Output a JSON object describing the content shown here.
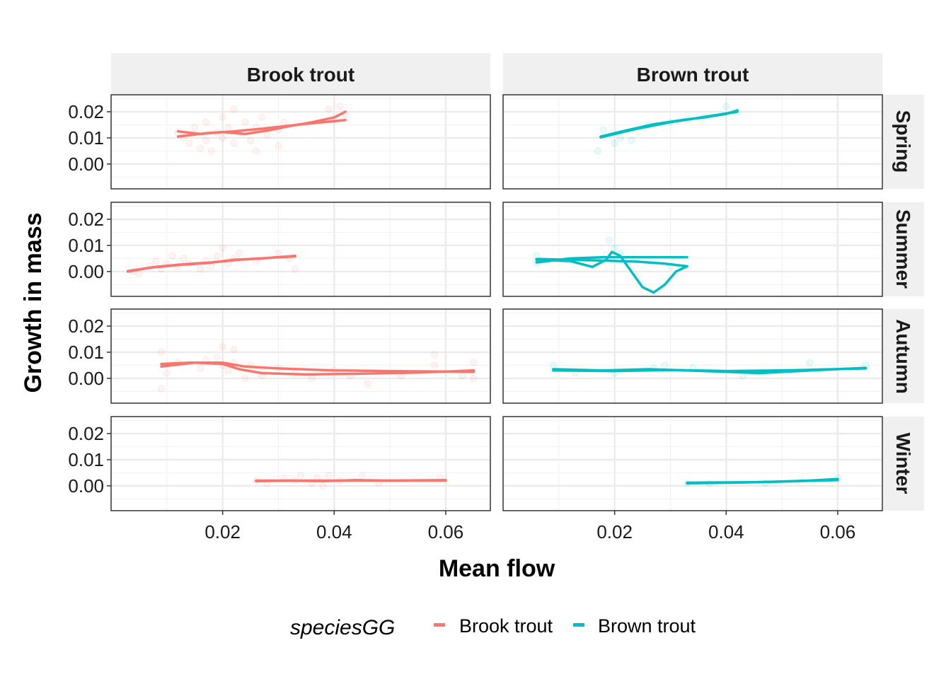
{
  "chart_data": {
    "type": "scatter",
    "xlabel": "Mean flow",
    "ylabel": "Growth in mass",
    "xlim": [
      0.0,
      0.068
    ],
    "ylim": [
      -0.0095,
      0.0265
    ],
    "x_ticks": [
      0.02,
      0.04,
      0.06
    ],
    "x_tick_labels": [
      "0.02",
      "0.04",
      "0.06"
    ],
    "y_ticks": [
      0.0,
      0.01,
      0.02
    ],
    "y_tick_labels": [
      "0.00",
      "0.01",
      "0.02"
    ],
    "grid": true,
    "columns": [
      "Brook trout",
      "Brown trout"
    ],
    "rows": [
      "Spring",
      "Summer",
      "Autumn",
      "Winter"
    ],
    "legend": {
      "title": "speciesGG",
      "position": "bottom",
      "entries": [
        {
          "label": "Brook trout",
          "color": "#F8766D"
        },
        {
          "label": "Brown trout",
          "color": "#00BFC4"
        }
      ]
    },
    "panels": [
      {
        "column": "Brook trout",
        "row": "Spring",
        "color": "#F8766D",
        "points": [
          [
            0.012,
            0.012
          ],
          [
            0.013,
            0.01
          ],
          [
            0.014,
            0.008
          ],
          [
            0.015,
            0.014
          ],
          [
            0.016,
            0.006
          ],
          [
            0.017,
            0.009
          ],
          [
            0.017,
            0.016
          ],
          [
            0.018,
            0.005
          ],
          [
            0.019,
            0.012
          ],
          [
            0.02,
            0.01
          ],
          [
            0.02,
            0.018
          ],
          [
            0.021,
            0.014
          ],
          [
            0.022,
            0.008
          ],
          [
            0.022,
            0.021
          ],
          [
            0.023,
            0.012
          ],
          [
            0.024,
            0.016
          ],
          [
            0.025,
            0.009
          ],
          [
            0.026,
            0.005
          ],
          [
            0.026,
            0.014
          ],
          [
            0.027,
            0.018
          ],
          [
            0.028,
            0.011
          ],
          [
            0.03,
            0.013
          ],
          [
            0.03,
            0.007
          ],
          [
            0.031,
            0.016
          ],
          [
            0.039,
            0.021
          ],
          [
            0.04,
            0.017
          ],
          [
            0.041,
            0.022
          ],
          [
            0.042,
            0.019
          ]
        ],
        "lines": [
          [
            [
              0.012,
              0.0125
            ],
            [
              0.016,
              0.0115
            ],
            [
              0.02,
              0.0122
            ],
            [
              0.024,
              0.0115
            ],
            [
              0.028,
              0.0128
            ],
            [
              0.032,
              0.0145
            ],
            [
              0.036,
              0.016
            ],
            [
              0.04,
              0.0178
            ],
            [
              0.042,
              0.02
            ]
          ],
          [
            [
              0.012,
              0.0105
            ],
            [
              0.017,
              0.0118
            ],
            [
              0.022,
              0.0125
            ],
            [
              0.027,
              0.0135
            ],
            [
              0.032,
              0.0147
            ],
            [
              0.037,
              0.0158
            ],
            [
              0.042,
              0.0168
            ]
          ]
        ]
      },
      {
        "column": "Brown trout",
        "row": "Spring",
        "color": "#00BFC4",
        "points": [
          [
            0.017,
            0.005
          ],
          [
            0.018,
            0.013
          ],
          [
            0.02,
            0.008
          ],
          [
            0.021,
            0.01
          ],
          [
            0.023,
            0.009
          ],
          [
            0.026,
            0.015
          ],
          [
            0.03,
            0.016
          ],
          [
            0.033,
            0.017
          ],
          [
            0.036,
            0.018
          ],
          [
            0.04,
            0.022
          ],
          [
            0.042,
            0.02
          ]
        ],
        "lines": [
          [
            [
              0.0175,
              0.0105
            ],
            [
              0.022,
              0.0128
            ],
            [
              0.027,
              0.0152
            ],
            [
              0.032,
              0.0168
            ],
            [
              0.036,
              0.0178
            ],
            [
              0.04,
              0.0192
            ],
            [
              0.042,
              0.0205
            ]
          ],
          [
            [
              0.0175,
              0.0102
            ],
            [
              0.024,
              0.0135
            ],
            [
              0.03,
              0.016
            ],
            [
              0.036,
              0.018
            ],
            [
              0.042,
              0.02
            ]
          ]
        ]
      },
      {
        "column": "Brook trout",
        "row": "Summer",
        "color": "#F8766D",
        "points": [
          [
            0.004,
            0.0
          ],
          [
            0.005,
            -0.001
          ],
          [
            0.007,
            0.002
          ],
          [
            0.008,
            0.004
          ],
          [
            0.009,
            0.001
          ],
          [
            0.01,
            0.003
          ],
          [
            0.011,
            0.006
          ],
          [
            0.012,
            0.002
          ],
          [
            0.013,
            0.005
          ],
          [
            0.014,
            0.003
          ],
          [
            0.016,
            0.001
          ],
          [
            0.017,
            0.004
          ],
          [
            0.018,
            0.002
          ],
          [
            0.019,
            0.006
          ],
          [
            0.02,
            0.009
          ],
          [
            0.021,
            0.003
          ],
          [
            0.022,
            0.005
          ],
          [
            0.023,
            0.007
          ],
          [
            0.026,
            0.004
          ],
          [
            0.03,
            0.007
          ],
          [
            0.032,
            0.005
          ],
          [
            0.033,
            0.001
          ]
        ],
        "lines": [
          [
            [
              0.003,
              0.0
            ],
            [
              0.007,
              0.0015
            ],
            [
              0.012,
              0.0025
            ],
            [
              0.017,
              0.0032
            ],
            [
              0.022,
              0.0045
            ],
            [
              0.027,
              0.005
            ],
            [
              0.033,
              0.006
            ]
          ],
          [
            [
              0.003,
              0.0002
            ],
            [
              0.008,
              0.0018
            ],
            [
              0.013,
              0.0028
            ],
            [
              0.018,
              0.0035
            ],
            [
              0.023,
              0.0045
            ],
            [
              0.028,
              0.0052
            ],
            [
              0.033,
              0.0058
            ]
          ]
        ]
      },
      {
        "column": "Brown trout",
        "row": "Summer",
        "color": "#00BFC4",
        "points": [
          [
            0.006,
            0.006
          ],
          [
            0.006,
            0.003
          ],
          [
            0.019,
            0.012
          ],
          [
            0.02,
            0.009
          ],
          [
            0.021,
            0.007
          ],
          [
            0.03,
            0.002
          ]
        ],
        "lines": [
          [
            [
              0.006,
              0.0045
            ],
            [
              0.012,
              0.004
            ],
            [
              0.016,
              0.0018
            ],
            [
              0.0185,
              0.0045
            ],
            [
              0.0195,
              0.0075
            ],
            [
              0.021,
              0.006
            ],
            [
              0.023,
              0.0
            ],
            [
              0.025,
              -0.006
            ],
            [
              0.027,
              -0.008
            ],
            [
              0.029,
              -0.005
            ],
            [
              0.031,
              0.0
            ],
            [
              0.033,
              0.002
            ]
          ],
          [
            [
              0.006,
              0.0035
            ],
            [
              0.012,
              0.005
            ],
            [
              0.018,
              0.0055
            ],
            [
              0.024,
              0.0055
            ],
            [
              0.033,
              0.0055
            ]
          ],
          [
            [
              0.006,
              0.0048
            ],
            [
              0.012,
              0.0045
            ],
            [
              0.018,
              0.0042
            ],
            [
              0.024,
              0.0038
            ],
            [
              0.029,
              0.003
            ],
            [
              0.033,
              0.002
            ]
          ]
        ]
      },
      {
        "column": "Brook trout",
        "row": "Autumn",
        "color": "#F8766D",
        "points": [
          [
            0.009,
            0.01
          ],
          [
            0.009,
            -0.004
          ],
          [
            0.01,
            0.002
          ],
          [
            0.012,
            0.006
          ],
          [
            0.016,
            0.004
          ],
          [
            0.017,
            0.007
          ],
          [
            0.019,
            0.008
          ],
          [
            0.02,
            0.012
          ],
          [
            0.02,
            0.005
          ],
          [
            0.021,
            0.003
          ],
          [
            0.022,
            0.011
          ],
          [
            0.022,
            0.006
          ],
          [
            0.024,
            0.0
          ],
          [
            0.025,
            0.005
          ],
          [
            0.027,
            0.001
          ],
          [
            0.03,
            0.004
          ],
          [
            0.033,
            0.002
          ],
          [
            0.036,
            0.0
          ],
          [
            0.04,
            0.003
          ],
          [
            0.043,
            0.001
          ],
          [
            0.046,
            -0.002
          ],
          [
            0.052,
            0.001
          ],
          [
            0.058,
            0.009
          ],
          [
            0.058,
            0.005
          ],
          [
            0.063,
            0.001
          ],
          [
            0.065,
            0.006
          ],
          [
            0.065,
            0.0
          ]
        ],
        "lines": [
          [
            [
              0.009,
              0.0055
            ],
            [
              0.014,
              0.006
            ],
            [
              0.02,
              0.006
            ],
            [
              0.024,
              0.0045
            ],
            [
              0.03,
              0.0038
            ],
            [
              0.04,
              0.003
            ],
            [
              0.05,
              0.0028
            ],
            [
              0.065,
              0.0025
            ]
          ],
          [
            [
              0.009,
              0.0045
            ],
            [
              0.015,
              0.006
            ],
            [
              0.02,
              0.0055
            ],
            [
              0.023,
              0.0035
            ],
            [
              0.027,
              0.002
            ],
            [
              0.035,
              0.0015
            ],
            [
              0.045,
              0.0018
            ],
            [
              0.055,
              0.0022
            ],
            [
              0.065,
              0.003
            ]
          ]
        ]
      },
      {
        "column": "Brown trout",
        "row": "Autumn",
        "color": "#00BFC4",
        "points": [
          [
            0.009,
            0.005
          ],
          [
            0.013,
            0.002
          ],
          [
            0.02,
            0.002
          ],
          [
            0.027,
            0.004
          ],
          [
            0.029,
            0.005
          ],
          [
            0.034,
            0.004
          ],
          [
            0.043,
            0.001
          ],
          [
            0.055,
            0.006
          ],
          [
            0.065,
            0.005
          ]
        ],
        "lines": [
          [
            [
              0.009,
              0.0035
            ],
            [
              0.018,
              0.003
            ],
            [
              0.026,
              0.0035
            ],
            [
              0.033,
              0.003
            ],
            [
              0.04,
              0.0025
            ],
            [
              0.046,
              0.002
            ],
            [
              0.055,
              0.003
            ],
            [
              0.065,
              0.004
            ]
          ],
          [
            [
              0.009,
              0.003
            ],
            [
              0.02,
              0.0028
            ],
            [
              0.03,
              0.0032
            ],
            [
              0.04,
              0.0028
            ],
            [
              0.05,
              0.003
            ],
            [
              0.065,
              0.0038
            ]
          ]
        ]
      },
      {
        "column": "Brook trout",
        "row": "Winter",
        "color": "#F8766D",
        "points": [
          [
            0.026,
            0.002
          ],
          [
            0.028,
            0.001
          ],
          [
            0.031,
            0.003
          ],
          [
            0.033,
            0.002
          ],
          [
            0.034,
            0.004
          ],
          [
            0.036,
            0.001
          ],
          [
            0.037,
            0.003
          ],
          [
            0.038,
            0.0
          ],
          [
            0.039,
            0.004
          ],
          [
            0.041,
            0.002
          ],
          [
            0.045,
            0.004
          ],
          [
            0.048,
            0.001
          ],
          [
            0.059,
            0.003
          ]
        ],
        "lines": [
          [
            [
              0.026,
              0.0018
            ],
            [
              0.032,
              0.002
            ],
            [
              0.038,
              0.0018
            ],
            [
              0.044,
              0.0022
            ],
            [
              0.05,
              0.002
            ],
            [
              0.06,
              0.0022
            ]
          ],
          [
            [
              0.026,
              0.002
            ],
            [
              0.035,
              0.002
            ],
            [
              0.045,
              0.002
            ],
            [
              0.06,
              0.002
            ]
          ]
        ]
      },
      {
        "column": "Brown trout",
        "row": "Winter",
        "color": "#00BFC4",
        "points": [
          [
            0.033,
            0.001
          ],
          [
            0.037,
            0.001
          ],
          [
            0.047,
            0.001
          ],
          [
            0.06,
            0.003
          ]
        ],
        "lines": [
          [
            [
              0.033,
              0.001
            ],
            [
              0.04,
              0.0012
            ],
            [
              0.048,
              0.0015
            ],
            [
              0.055,
              0.002
            ],
            [
              0.06,
              0.0026
            ]
          ],
          [
            [
              0.033,
              0.0012
            ],
            [
              0.045,
              0.0014
            ],
            [
              0.06,
              0.0022
            ]
          ]
        ]
      }
    ]
  }
}
